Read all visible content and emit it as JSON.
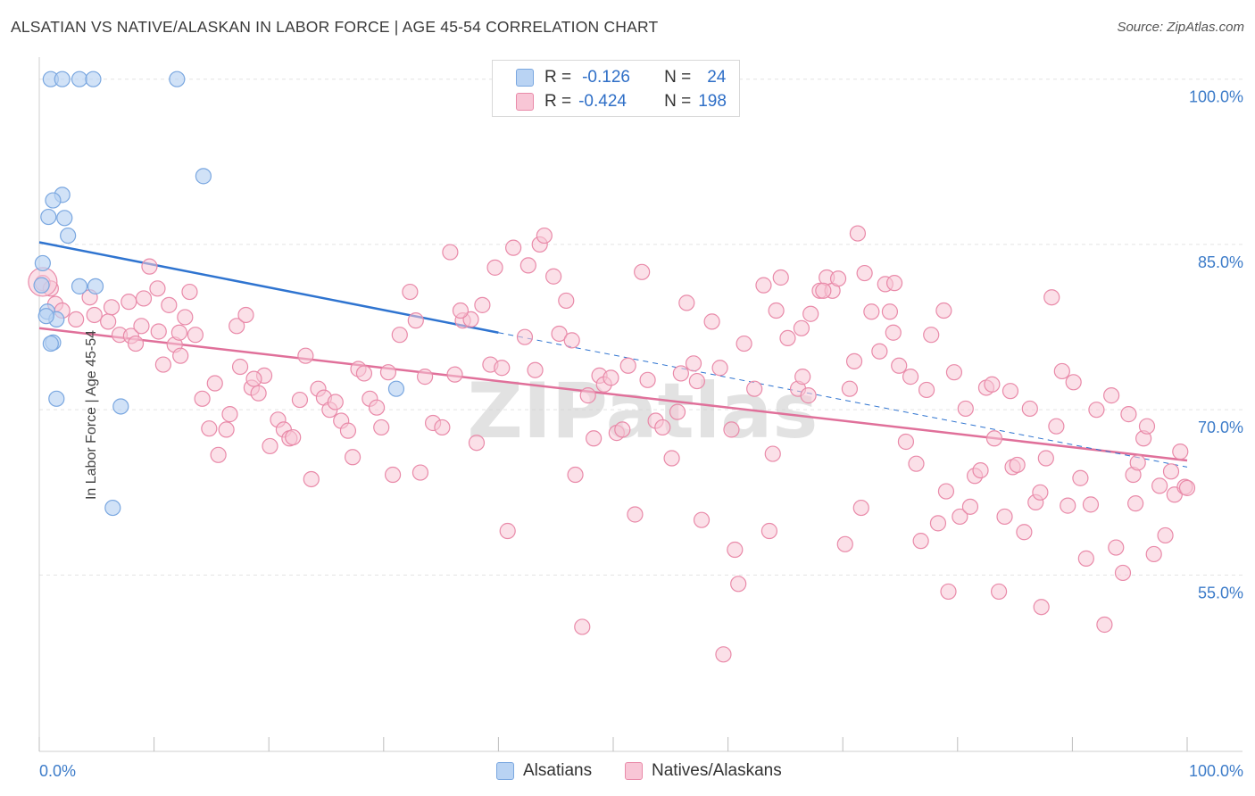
{
  "title": "ALSATIAN VS NATIVE/ALASKAN IN LABOR FORCE | AGE 45-54 CORRELATION CHART",
  "source": "Source: ZipAtlas.com",
  "watermark": "ZIPatlas",
  "colors": {
    "blue_fill": "#b9d3f3",
    "blue_stroke": "#7aa7e0",
    "blue_line": "#2f74d0",
    "pink_fill": "#f8c6d6",
    "pink_stroke": "#e98aa9",
    "pink_line": "#e0709a",
    "axis_text": "#3d7cc9"
  },
  "legend_top": {
    "rows": [
      {
        "series": "alsatians",
        "r_label": "R =",
        "r_value": "-0.126",
        "n_label": "N =",
        "n_value": "24"
      },
      {
        "series": "natives",
        "r_label": "R =",
        "r_value": "-0.424",
        "n_label": "N =",
        "n_value": "198"
      }
    ]
  },
  "legend_bottom": {
    "items": [
      "Alsatians",
      "Natives/Alaskans"
    ]
  },
  "chart_data": {
    "type": "scatter",
    "title": "ALSATIAN VS NATIVE/ALASKAN IN LABOR FORCE | AGE 45-54 CORRELATION CHART",
    "xlabel": "",
    "ylabel": "In Labor Force | Age 45-54",
    "xlim": [
      0,
      100
    ],
    "ylim": [
      39,
      102
    ],
    "x_tick_labels": [
      "0.0%",
      "100.0%"
    ],
    "y_ticks": [
      {
        "value": 55,
        "label": "55.0%"
      },
      {
        "value": 70,
        "label": "70.0%"
      },
      {
        "value": 85,
        "label": "85.0%"
      },
      {
        "value": 100,
        "label": "100.0%"
      }
    ],
    "grid": true,
    "series": [
      {
        "name": "Alsatians",
        "color": "#7aa7e0",
        "trend": {
          "x0": 0,
          "y0": 85.2,
          "x1": 40,
          "y1": 77.0,
          "dashed_to_x": 100,
          "dashed_to_y": 64.8
        },
        "points": [
          [
            1.0,
            100
          ],
          [
            2.0,
            100
          ],
          [
            3.5,
            100
          ],
          [
            4.7,
            100
          ],
          [
            12.0,
            100
          ],
          [
            14.3,
            91.2
          ],
          [
            2.0,
            89.5
          ],
          [
            1.2,
            89.0
          ],
          [
            0.8,
            87.5
          ],
          [
            2.2,
            87.4
          ],
          [
            2.5,
            85.8
          ],
          [
            0.3,
            83.3
          ],
          [
            0.2,
            81.3
          ],
          [
            4.9,
            81.2
          ],
          [
            3.5,
            81.2
          ],
          [
            0.7,
            78.9
          ],
          [
            1.5,
            78.2
          ],
          [
            0.6,
            78.5
          ],
          [
            1.2,
            76.1
          ],
          [
            1.0,
            76.0
          ],
          [
            31.1,
            71.9
          ],
          [
            1.5,
            71.0
          ],
          [
            7.1,
            70.3
          ],
          [
            6.4,
            61.1
          ]
        ]
      },
      {
        "name": "Natives/Alaskans",
        "color": "#e98aa9",
        "trend": {
          "x0": 0,
          "y0": 77.4,
          "x1": 100,
          "y1": 65.4
        },
        "points": [
          [
            0.3,
            81.5
          ],
          [
            1.0,
            81.0
          ],
          [
            1.4,
            79.6
          ],
          [
            2.0,
            79.0
          ],
          [
            3.2,
            78.2
          ],
          [
            4.4,
            80.2
          ],
          [
            4.8,
            78.6
          ],
          [
            6.0,
            78.0
          ],
          [
            6.3,
            79.3
          ],
          [
            7.0,
            76.8
          ],
          [
            7.8,
            79.8
          ],
          [
            8.0,
            76.7
          ],
          [
            8.4,
            76.0
          ],
          [
            8.9,
            77.6
          ],
          [
            9.1,
            80.1
          ],
          [
            9.6,
            83.0
          ],
          [
            10.3,
            81.0
          ],
          [
            10.4,
            77.1
          ],
          [
            10.8,
            74.1
          ],
          [
            11.3,
            79.5
          ],
          [
            11.8,
            75.9
          ],
          [
            12.3,
            74.9
          ],
          [
            12.7,
            78.4
          ],
          [
            13.1,
            80.7
          ],
          [
            13.6,
            76.8
          ],
          [
            14.2,
            71.0
          ],
          [
            14.8,
            68.3
          ],
          [
            15.3,
            72.4
          ],
          [
            15.6,
            65.9
          ],
          [
            16.3,
            68.2
          ],
          [
            16.6,
            69.6
          ],
          [
            17.2,
            77.6
          ],
          [
            17.5,
            73.9
          ],
          [
            18.0,
            78.6
          ],
          [
            18.5,
            72.0
          ],
          [
            19.1,
            71.5
          ],
          [
            19.6,
            73.1
          ],
          [
            20.1,
            66.7
          ],
          [
            20.8,
            69.1
          ],
          [
            21.3,
            68.2
          ],
          [
            21.8,
            67.4
          ],
          [
            22.1,
            67.5
          ],
          [
            22.7,
            70.9
          ],
          [
            23.2,
            74.9
          ],
          [
            23.7,
            63.7
          ],
          [
            24.3,
            71.9
          ],
          [
            24.8,
            71.1
          ],
          [
            25.3,
            70.0
          ],
          [
            25.8,
            70.7
          ],
          [
            26.3,
            69.0
          ],
          [
            26.9,
            68.1
          ],
          [
            27.3,
            65.7
          ],
          [
            27.8,
            73.7
          ],
          [
            28.3,
            73.3
          ],
          [
            28.8,
            71.0
          ],
          [
            29.4,
            70.2
          ],
          [
            29.8,
            68.4
          ],
          [
            30.4,
            73.4
          ],
          [
            30.8,
            64.1
          ],
          [
            31.4,
            76.8
          ],
          [
            32.3,
            80.7
          ],
          [
            32.8,
            78.1
          ],
          [
            33.2,
            64.3
          ],
          [
            33.6,
            73.0
          ],
          [
            34.3,
            68.8
          ],
          [
            35.1,
            68.4
          ],
          [
            35.8,
            84.3
          ],
          [
            36.2,
            73.2
          ],
          [
            36.9,
            78.1
          ],
          [
            37.6,
            78.2
          ],
          [
            38.1,
            67.0
          ],
          [
            38.6,
            79.5
          ],
          [
            39.3,
            74.1
          ],
          [
            39.7,
            82.9
          ],
          [
            40.3,
            73.8
          ],
          [
            40.8,
            59.0
          ],
          [
            41.3,
            84.7
          ],
          [
            42.3,
            76.6
          ],
          [
            43.2,
            73.6
          ],
          [
            43.6,
            85.0
          ],
          [
            44.0,
            85.8
          ],
          [
            44.8,
            82.1
          ],
          [
            45.3,
            76.9
          ],
          [
            45.9,
            79.9
          ],
          [
            46.4,
            76.3
          ],
          [
            46.7,
            64.1
          ],
          [
            47.3,
            50.3
          ],
          [
            47.8,
            71.3
          ],
          [
            48.3,
            67.4
          ],
          [
            48.8,
            73.1
          ],
          [
            49.2,
            72.3
          ],
          [
            49.8,
            72.9
          ],
          [
            50.3,
            67.9
          ],
          [
            50.8,
            68.2
          ],
          [
            51.3,
            74.0
          ],
          [
            51.9,
            60.5
          ],
          [
            52.5,
            82.5
          ],
          [
            53.0,
            72.7
          ],
          [
            53.7,
            69.0
          ],
          [
            54.3,
            68.4
          ],
          [
            55.1,
            65.6
          ],
          [
            55.6,
            69.8
          ],
          [
            55.9,
            73.3
          ],
          [
            56.4,
            79.7
          ],
          [
            57.0,
            74.2
          ],
          [
            57.3,
            72.6
          ],
          [
            57.7,
            60.0
          ],
          [
            58.6,
            78.0
          ],
          [
            59.3,
            73.8
          ],
          [
            59.6,
            47.8
          ],
          [
            60.3,
            68.2
          ],
          [
            60.6,
            57.3
          ],
          [
            60.9,
            54.2
          ],
          [
            61.4,
            76.0
          ],
          [
            62.3,
            71.9
          ],
          [
            63.1,
            81.3
          ],
          [
            63.6,
            59.0
          ],
          [
            63.9,
            66.0
          ],
          [
            64.2,
            79.0
          ],
          [
            64.6,
            82.0
          ],
          [
            65.2,
            76.5
          ],
          [
            66.1,
            71.9
          ],
          [
            66.5,
            73.0
          ],
          [
            67.0,
            71.3
          ],
          [
            67.2,
            78.7
          ],
          [
            68.0,
            80.8
          ],
          [
            68.6,
            82.0
          ],
          [
            69.1,
            80.8
          ],
          [
            69.6,
            81.9
          ],
          [
            70.2,
            57.8
          ],
          [
            70.6,
            71.9
          ],
          [
            71.0,
            74.4
          ],
          [
            71.3,
            86.0
          ],
          [
            71.6,
            61.1
          ],
          [
            71.9,
            82.4
          ],
          [
            72.5,
            78.9
          ],
          [
            73.2,
            75.3
          ],
          [
            73.7,
            81.4
          ],
          [
            74.1,
            78.9
          ],
          [
            74.4,
            77.0
          ],
          [
            74.9,
            74.0
          ],
          [
            75.5,
            67.1
          ],
          [
            75.9,
            73.0
          ],
          [
            76.4,
            65.1
          ],
          [
            76.8,
            58.1
          ],
          [
            77.3,
            71.8
          ],
          [
            77.7,
            76.8
          ],
          [
            78.3,
            59.7
          ],
          [
            78.8,
            79.0
          ],
          [
            79.2,
            53.5
          ],
          [
            79.7,
            73.4
          ],
          [
            80.2,
            60.3
          ],
          [
            80.7,
            70.1
          ],
          [
            81.1,
            61.2
          ],
          [
            81.5,
            64.0
          ],
          [
            82.0,
            64.5
          ],
          [
            82.5,
            72.0
          ],
          [
            83.0,
            72.3
          ],
          [
            83.2,
            67.4
          ],
          [
            83.6,
            53.5
          ],
          [
            84.1,
            60.3
          ],
          [
            84.6,
            71.7
          ],
          [
            84.8,
            64.8
          ],
          [
            85.2,
            65.0
          ],
          [
            85.8,
            58.9
          ],
          [
            86.3,
            70.1
          ],
          [
            86.8,
            61.6
          ],
          [
            87.3,
            52.1
          ],
          [
            87.7,
            65.6
          ],
          [
            88.2,
            80.2
          ],
          [
            88.6,
            68.5
          ],
          [
            89.1,
            73.5
          ],
          [
            89.6,
            61.3
          ],
          [
            90.1,
            72.5
          ],
          [
            90.7,
            63.8
          ],
          [
            91.2,
            56.5
          ],
          [
            91.6,
            61.4
          ],
          [
            92.1,
            70.0
          ],
          [
            92.8,
            50.5
          ],
          [
            93.4,
            71.3
          ],
          [
            93.8,
            57.5
          ],
          [
            94.4,
            55.2
          ],
          [
            94.9,
            69.6
          ],
          [
            95.3,
            64.1
          ],
          [
            95.7,
            65.2
          ],
          [
            96.2,
            67.4
          ],
          [
            96.5,
            68.5
          ],
          [
            97.1,
            56.9
          ],
          [
            97.6,
            63.1
          ],
          [
            98.1,
            58.6
          ],
          [
            98.6,
            64.4
          ],
          [
            98.9,
            62.3
          ],
          [
            99.4,
            66.2
          ],
          [
            99.8,
            63.0
          ],
          [
            100.0,
            62.9
          ],
          [
            95.5,
            61.5
          ],
          [
            79.0,
            62.6
          ],
          [
            42.6,
            83.1
          ],
          [
            87.2,
            62.5
          ],
          [
            36.7,
            79.0
          ],
          [
            74.5,
            81.5
          ],
          [
            68.3,
            80.8
          ],
          [
            18.7,
            72.8
          ],
          [
            66.4,
            77.4
          ],
          [
            12.2,
            77.0
          ]
        ]
      }
    ]
  }
}
